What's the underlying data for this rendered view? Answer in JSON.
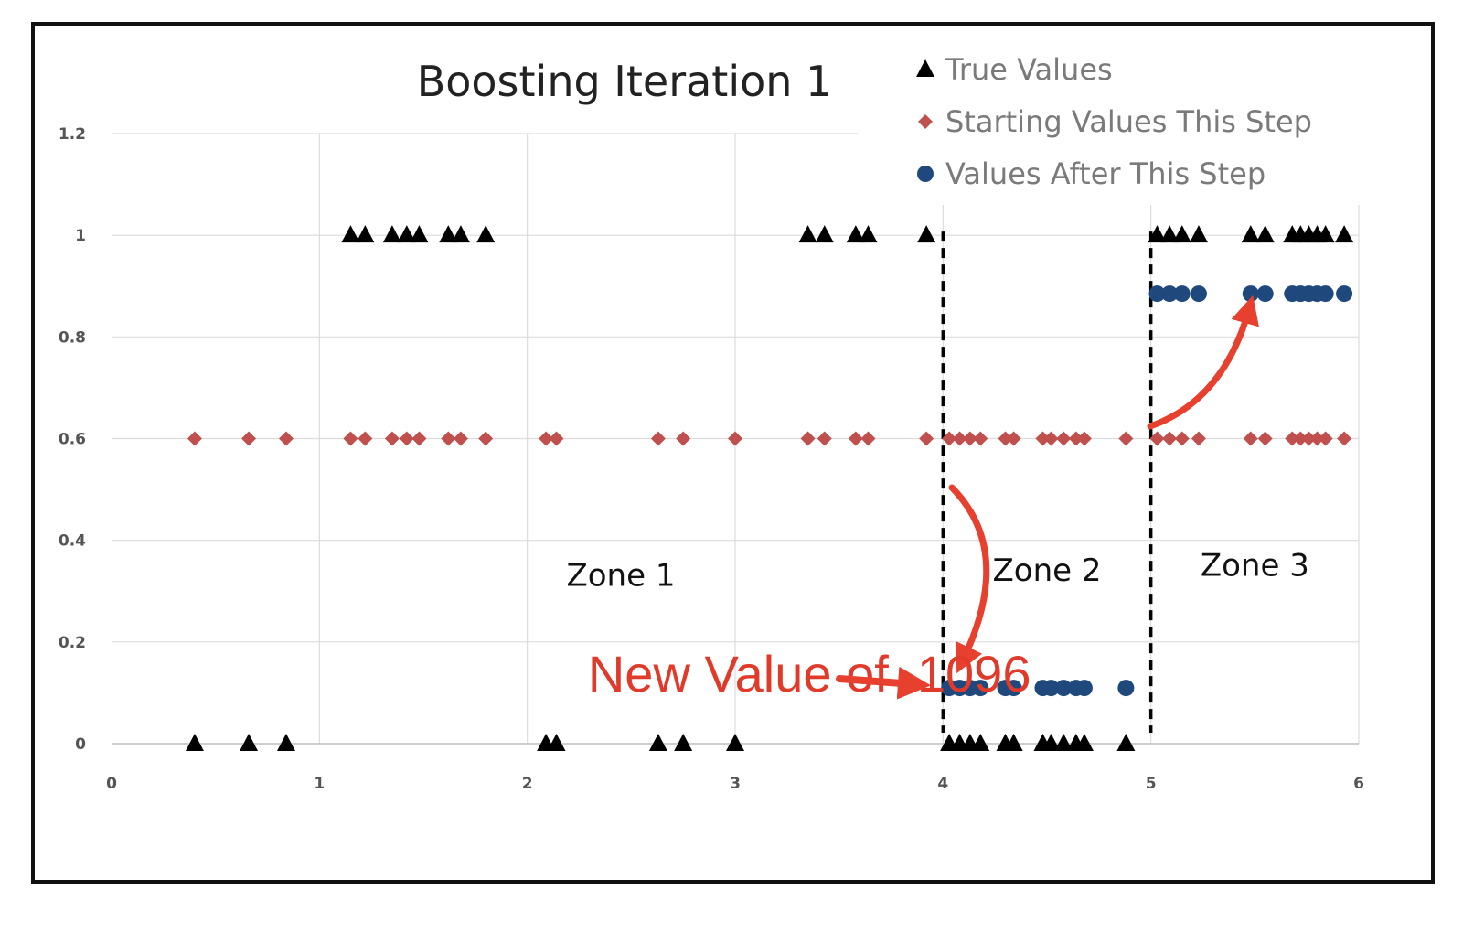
{
  "chart_data": {
    "type": "scatter",
    "title": "Boosting Iteration 1",
    "xlabel": "",
    "ylabel": "",
    "xlim": [
      0,
      6
    ],
    "ylim": [
      0,
      1.2
    ],
    "x_ticks": [
      "0",
      "1",
      "2",
      "3",
      "4",
      "5",
      "6"
    ],
    "y_ticks": [
      "0",
      "0.2",
      "0.4",
      "0.6",
      "0.8",
      "1",
      "1.2"
    ],
    "legend_position": "top-right",
    "series": [
      {
        "name": "True Values",
        "marker": "triangle",
        "color": "#000000",
        "points": [
          [
            0.4,
            0
          ],
          [
            0.66,
            0
          ],
          [
            0.84,
            0
          ],
          [
            1.15,
            1
          ],
          [
            1.22,
            1
          ],
          [
            1.35,
            1
          ],
          [
            1.42,
            1
          ],
          [
            1.48,
            1
          ],
          [
            1.62,
            1
          ],
          [
            1.68,
            1
          ],
          [
            1.8,
            1
          ],
          [
            2.09,
            0
          ],
          [
            2.14,
            0
          ],
          [
            2.63,
            0
          ],
          [
            2.75,
            0
          ],
          [
            3.0,
            0
          ],
          [
            3.35,
            1
          ],
          [
            3.43,
            1
          ],
          [
            3.58,
            1
          ],
          [
            3.64,
            1
          ],
          [
            3.92,
            1
          ],
          [
            4.03,
            0
          ],
          [
            4.08,
            0
          ],
          [
            4.13,
            0
          ],
          [
            4.18,
            0
          ],
          [
            4.3,
            0
          ],
          [
            4.34,
            0
          ],
          [
            4.48,
            0
          ],
          [
            4.52,
            0
          ],
          [
            4.58,
            0
          ],
          [
            4.64,
            0
          ],
          [
            4.68,
            0
          ],
          [
            4.88,
            0
          ],
          [
            5.03,
            1
          ],
          [
            5.09,
            1
          ],
          [
            5.15,
            1
          ],
          [
            5.23,
            1
          ],
          [
            5.48,
            1
          ],
          [
            5.55,
            1
          ],
          [
            5.68,
            1
          ],
          [
            5.72,
            1
          ],
          [
            5.76,
            1
          ],
          [
            5.8,
            1
          ],
          [
            5.84,
            1
          ],
          [
            5.93,
            1
          ]
        ]
      },
      {
        "name": "Starting Values This Step",
        "marker": "diamond",
        "color": "#c0504d",
        "points": [
          [
            0.4,
            0.6
          ],
          [
            0.66,
            0.6
          ],
          [
            0.84,
            0.6
          ],
          [
            1.15,
            0.6
          ],
          [
            1.22,
            0.6
          ],
          [
            1.35,
            0.6
          ],
          [
            1.42,
            0.6
          ],
          [
            1.48,
            0.6
          ],
          [
            1.62,
            0.6
          ],
          [
            1.68,
            0.6
          ],
          [
            1.8,
            0.6
          ],
          [
            2.09,
            0.6
          ],
          [
            2.14,
            0.6
          ],
          [
            2.63,
            0.6
          ],
          [
            2.75,
            0.6
          ],
          [
            3.0,
            0.6
          ],
          [
            3.35,
            0.6
          ],
          [
            3.43,
            0.6
          ],
          [
            3.58,
            0.6
          ],
          [
            3.64,
            0.6
          ],
          [
            3.92,
            0.6
          ],
          [
            4.03,
            0.6
          ],
          [
            4.08,
            0.6
          ],
          [
            4.13,
            0.6
          ],
          [
            4.18,
            0.6
          ],
          [
            4.3,
            0.6
          ],
          [
            4.34,
            0.6
          ],
          [
            4.48,
            0.6
          ],
          [
            4.52,
            0.6
          ],
          [
            4.58,
            0.6
          ],
          [
            4.64,
            0.6
          ],
          [
            4.68,
            0.6
          ],
          [
            4.88,
            0.6
          ],
          [
            5.03,
            0.6
          ],
          [
            5.09,
            0.6
          ],
          [
            5.15,
            0.6
          ],
          [
            5.23,
            0.6
          ],
          [
            5.48,
            0.6
          ],
          [
            5.55,
            0.6
          ],
          [
            5.68,
            0.6
          ],
          [
            5.72,
            0.6
          ],
          [
            5.76,
            0.6
          ],
          [
            5.8,
            0.6
          ],
          [
            5.84,
            0.6
          ],
          [
            5.93,
            0.6
          ]
        ]
      },
      {
        "name": "Values After This Step",
        "marker": "circle",
        "color": "#1f497d",
        "points": [
          [
            4.03,
            0.1096
          ],
          [
            4.08,
            0.1096
          ],
          [
            4.13,
            0.1096
          ],
          [
            4.18,
            0.1096
          ],
          [
            4.3,
            0.1096
          ],
          [
            4.34,
            0.1096
          ],
          [
            4.48,
            0.1096
          ],
          [
            4.52,
            0.1096
          ],
          [
            4.58,
            0.1096
          ],
          [
            4.64,
            0.1096
          ],
          [
            4.68,
            0.1096
          ],
          [
            4.88,
            0.1096
          ],
          [
            5.03,
            0.885
          ],
          [
            5.09,
            0.885
          ],
          [
            5.15,
            0.885
          ],
          [
            5.23,
            0.885
          ],
          [
            5.48,
            0.885
          ],
          [
            5.55,
            0.885
          ],
          [
            5.68,
            0.885
          ],
          [
            5.72,
            0.885
          ],
          [
            5.76,
            0.885
          ],
          [
            5.8,
            0.885
          ],
          [
            5.84,
            0.885
          ],
          [
            5.93,
            0.885
          ]
        ]
      }
    ],
    "zone_boundaries": [
      4,
      5
    ],
    "zones": [
      {
        "label": "Zone 1",
        "x": 2.45,
        "y": 0.31
      },
      {
        "label": "Zone 2",
        "x": 4.5,
        "y": 0.32
      },
      {
        "label": "Zone 3",
        "x": 5.5,
        "y": 0.33
      }
    ],
    "annotations": [
      {
        "text": "New Value of .1096",
        "color": "#e03a2b",
        "x": 2.3,
        "y": 0.135
      }
    ]
  }
}
